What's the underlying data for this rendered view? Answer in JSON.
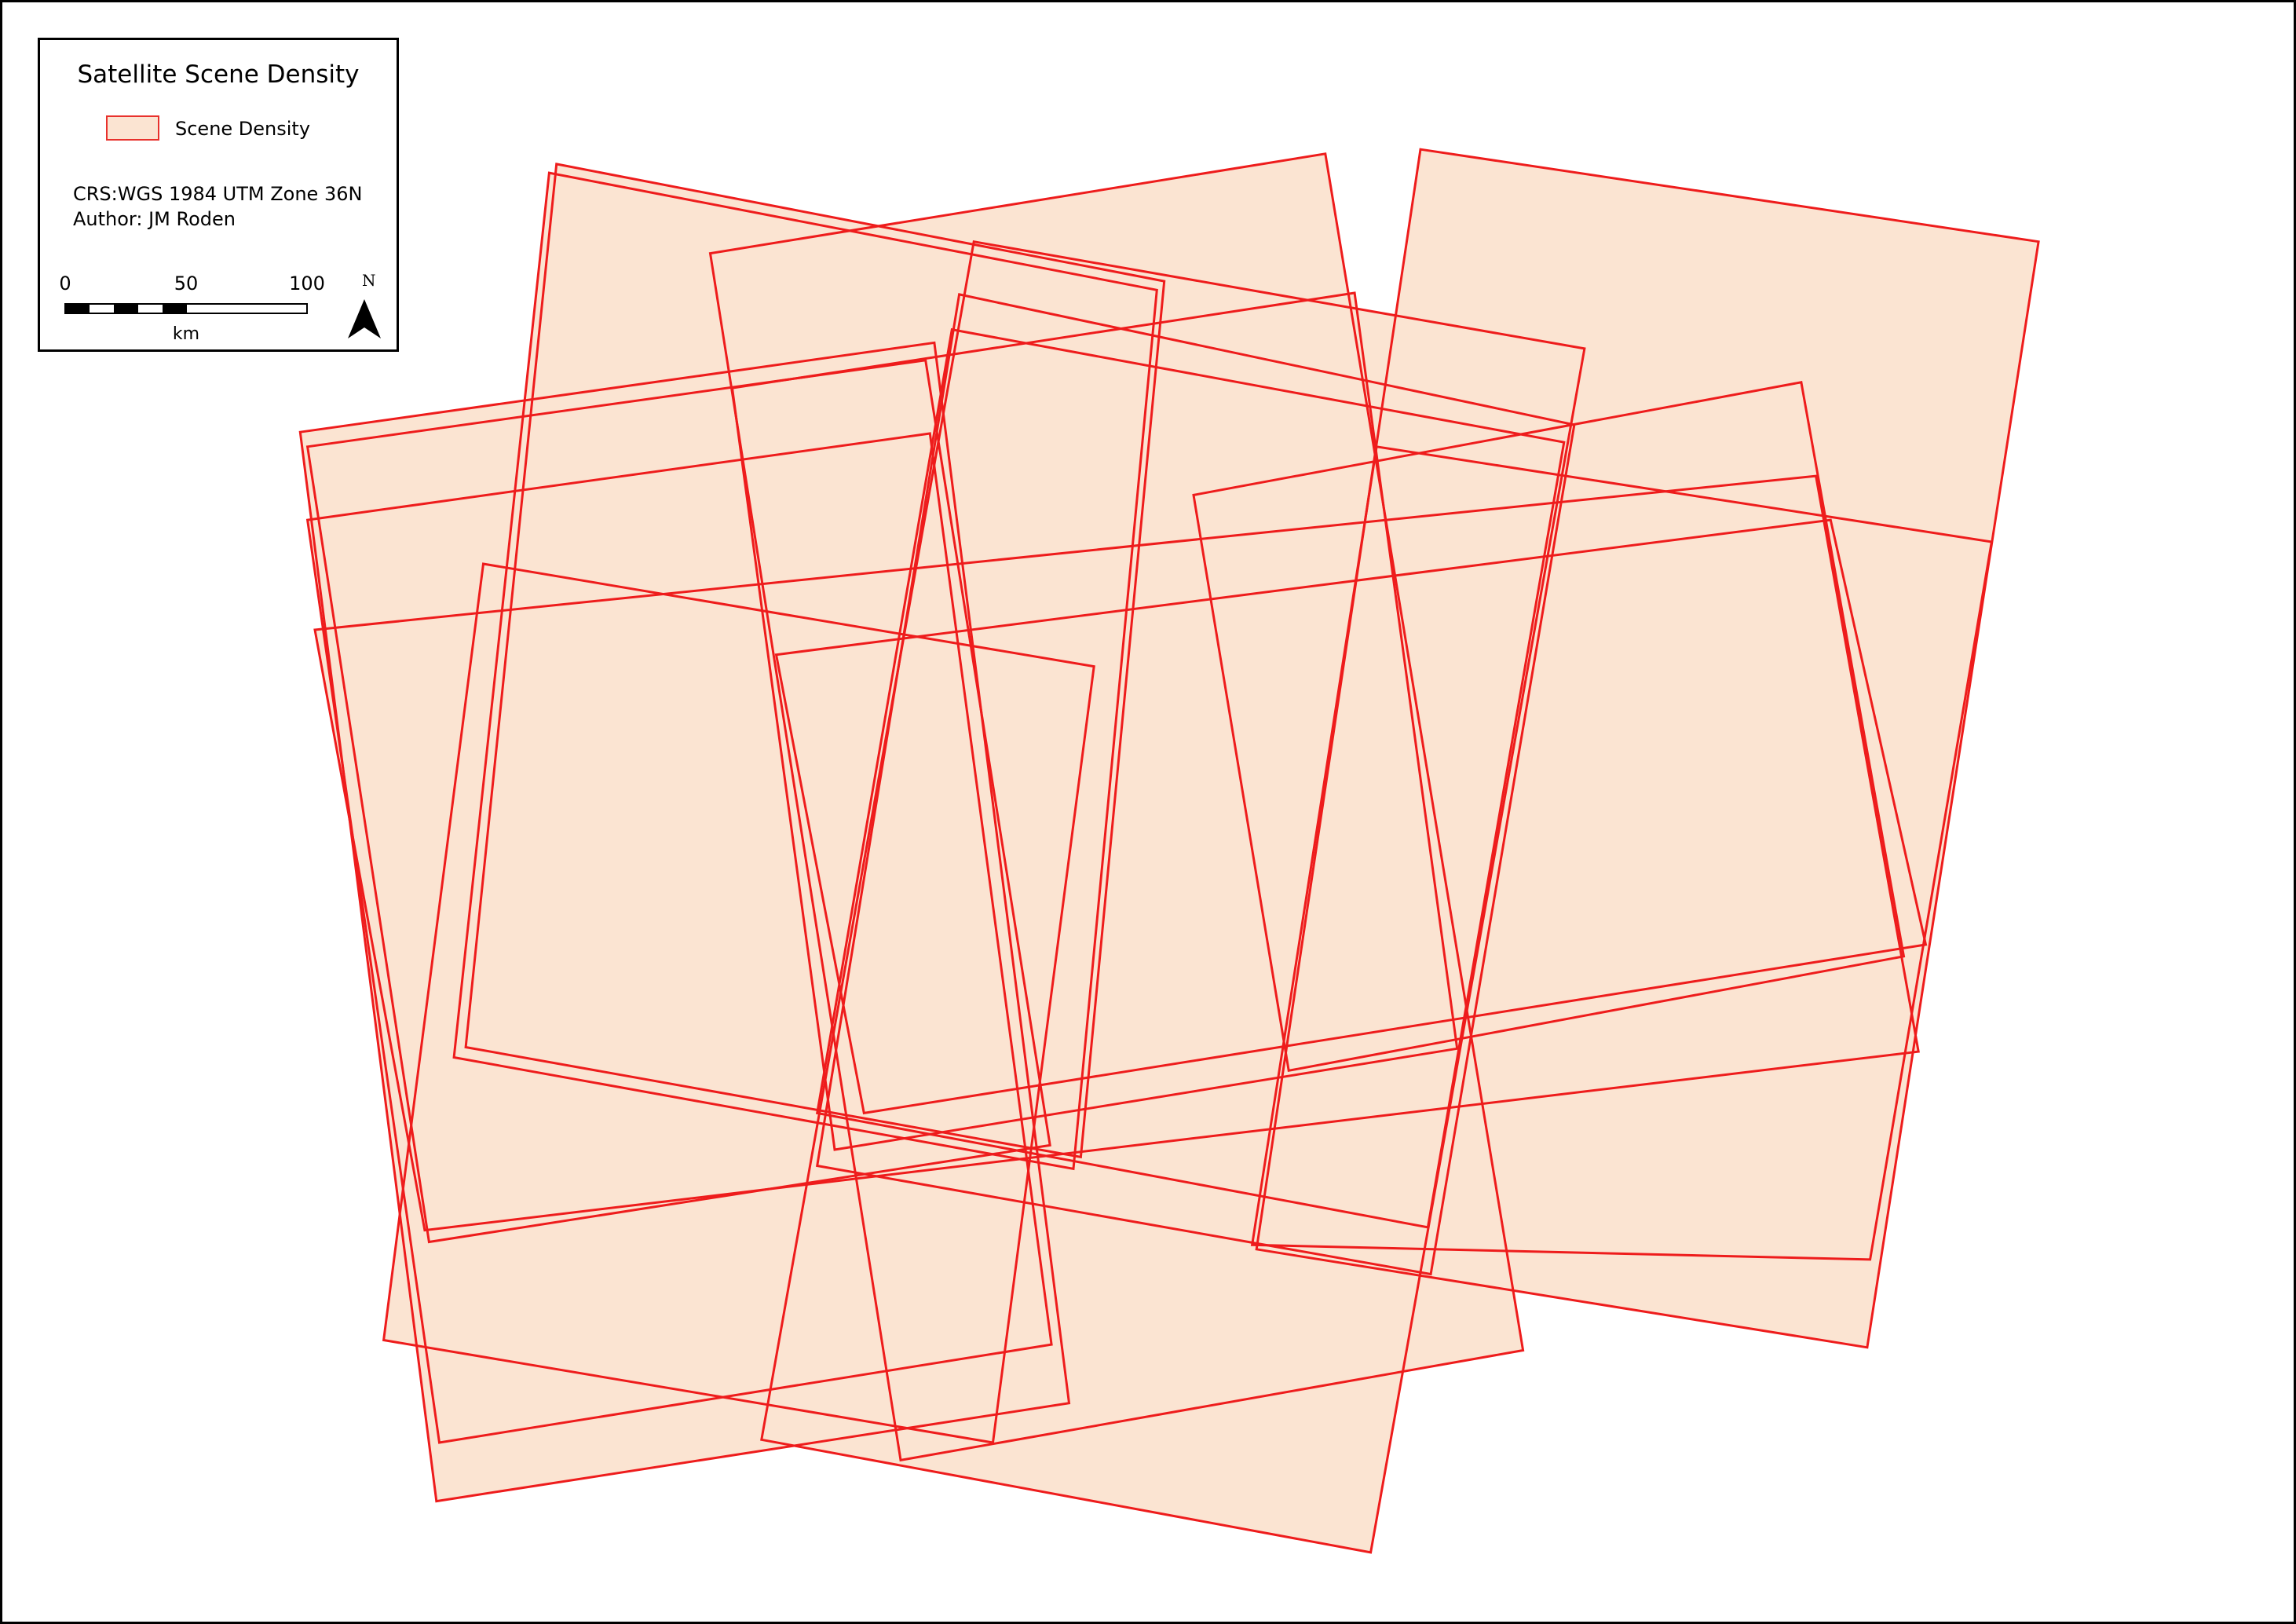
{
  "map": {
    "fill_color": "#fbe4d2",
    "stroke_color": "#ee1c1c",
    "footprint_count": 16
  },
  "legend": {
    "title": "Satellite Scene Density",
    "item_label": "Scene Density",
    "crs": "CRS:WGS 1984 UTM Zone 36N",
    "author": "Author: JM Roden",
    "scale": {
      "ticks": [
        "0",
        "50",
        "100"
      ],
      "unit": "km"
    },
    "north_label": "N"
  }
}
